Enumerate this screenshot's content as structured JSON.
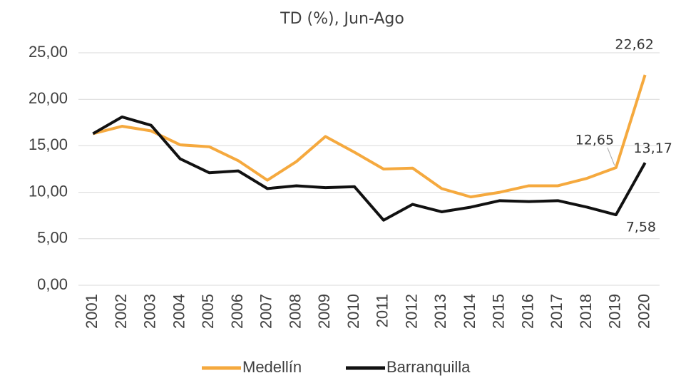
{
  "chart_data": {
    "type": "line",
    "title": "TD (%), Jun-Ago",
    "categories": [
      "2001",
      "2002",
      "2003",
      "2004",
      "2005",
      "2006",
      "2007",
      "2008",
      "2009",
      "2010",
      "2011",
      "2012",
      "2013",
      "2014",
      "2015",
      "2016",
      "2017",
      "2018",
      "2019",
      "2020"
    ],
    "series": [
      {
        "name": "Medellín",
        "color": "#f5a93e",
        "values": [
          16.3,
          17.1,
          16.6,
          15.1,
          14.9,
          13.4,
          11.3,
          13.3,
          16.0,
          14.3,
          12.5,
          12.6,
          10.4,
          9.5,
          10.0,
          10.7,
          10.7,
          11.5,
          12.65,
          22.62
        ],
        "value_labels": [
          null,
          null,
          null,
          null,
          null,
          null,
          null,
          null,
          null,
          null,
          null,
          null,
          null,
          null,
          null,
          null,
          null,
          null,
          "12,65",
          "22,62"
        ]
      },
      {
        "name": "Barranquilla",
        "color": "#111111",
        "values": [
          16.3,
          18.1,
          17.2,
          13.6,
          12.1,
          12.3,
          10.4,
          10.7,
          10.5,
          10.6,
          7.0,
          8.7,
          7.9,
          8.4,
          9.1,
          9.0,
          9.1,
          8.4,
          7.58,
          13.17
        ],
        "value_labels": [
          null,
          null,
          null,
          null,
          null,
          null,
          null,
          null,
          null,
          null,
          null,
          null,
          null,
          null,
          null,
          null,
          null,
          null,
          "7,58",
          "13,17"
        ]
      }
    ],
    "ylim": [
      0,
      25
    ],
    "yticks": [
      {
        "value": 0,
        "label": "0,00"
      },
      {
        "value": 5,
        "label": "5,00"
      },
      {
        "value": 10,
        "label": "10,00"
      },
      {
        "value": 15,
        "label": "15,00"
      },
      {
        "value": 20,
        "label": "20,00"
      },
      {
        "value": 25,
        "label": "25,00"
      }
    ],
    "grid": true,
    "legend": "bottom"
  }
}
